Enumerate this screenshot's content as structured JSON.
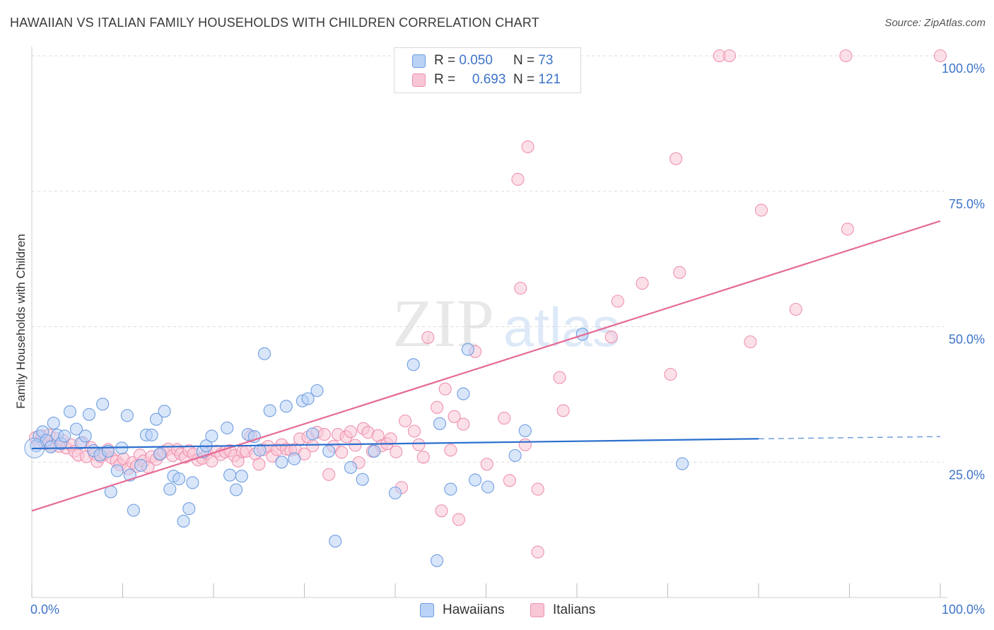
{
  "title": "HAWAIIAN VS ITALIAN FAMILY HOUSEHOLDS WITH CHILDREN CORRELATION CHART",
  "source": "Source: ZipAtlas.com",
  "watermark": {
    "zip": "ZIP",
    "atlas": "atlas"
  },
  "legend": {
    "rows": [
      {
        "r_label": "R =",
        "r_value": "0.050",
        "n_label": "N =",
        "n_value": "73"
      },
      {
        "r_label": "R =",
        "r_value": "0.693",
        "n_label": "N =",
        "n_value": "121"
      }
    ]
  },
  "bottom_legend": {
    "hawaiians": "Hawaiians",
    "italians": "Italians"
  },
  "colors": {
    "hawaiian_fill": "#b9d2f5",
    "hawaiian_stroke": "#6f9ee0",
    "hawaiian_line": "#2b6fce",
    "italian_fill": "#f9c6d6",
    "italian_stroke": "#ee92b0",
    "italian_line": "#e46a95",
    "tick_label": "#3d74c8",
    "grid": "#dddddd"
  },
  "chart_data": {
    "type": "scatter",
    "title": "HAWAIIAN VS ITALIAN FAMILY HOUSEHOLDS WITH CHILDREN CORRELATION CHART",
    "xlabel": "",
    "ylabel": "Family Households with Children",
    "xlim": [
      0,
      100
    ],
    "ylim": [
      0,
      100
    ],
    "x_tick_labels": [
      "0.0%",
      "100.0%"
    ],
    "y_tick_labels": [
      "25.0%",
      "50.0%",
      "75.0%",
      "100.0%"
    ],
    "y_ticks": [
      25,
      50,
      75,
      100
    ],
    "grid": true,
    "series": [
      {
        "name": "Hawaiians",
        "R": 0.05,
        "N": 73,
        "trend": {
          "x": [
            0,
            80
          ],
          "y": [
            27.5,
            29.3
          ],
          "dashed_to": [
            100,
            29.7
          ]
        },
        "points": [
          [
            0.5,
            28.0
          ],
          [
            0.8,
            29.8
          ],
          [
            1.2,
            30.6
          ],
          [
            1.6,
            29.0
          ],
          [
            2.1,
            27.8
          ],
          [
            2.4,
            32.2
          ],
          [
            2.8,
            30.0
          ],
          [
            3.2,
            28.4
          ],
          [
            3.6,
            29.8
          ],
          [
            4.2,
            34.3
          ],
          [
            4.9,
            31.1
          ],
          [
            5.4,
            28.5
          ],
          [
            5.9,
            29.8
          ],
          [
            6.3,
            33.8
          ],
          [
            6.8,
            27.1
          ],
          [
            7.5,
            26.3
          ],
          [
            7.8,
            35.7
          ],
          [
            8.4,
            27.0
          ],
          [
            8.7,
            19.5
          ],
          [
            9.4,
            23.4
          ],
          [
            9.9,
            27.6
          ],
          [
            10.5,
            33.6
          ],
          [
            10.8,
            22.6
          ],
          [
            11.2,
            16.1
          ],
          [
            12.0,
            24.4
          ],
          [
            12.6,
            30.0
          ],
          [
            13.2,
            30.0
          ],
          [
            13.7,
            32.9
          ],
          [
            14.1,
            26.5
          ],
          [
            14.6,
            34.4
          ],
          [
            15.2,
            20.0
          ],
          [
            15.6,
            22.4
          ],
          [
            16.2,
            21.9
          ],
          [
            16.7,
            14.1
          ],
          [
            17.3,
            16.4
          ],
          [
            17.7,
            21.2
          ],
          [
            18.8,
            26.9
          ],
          [
            19.2,
            28.0
          ],
          [
            19.8,
            29.8
          ],
          [
            21.5,
            31.3
          ],
          [
            21.8,
            22.6
          ],
          [
            22.5,
            19.9
          ],
          [
            23.1,
            22.4
          ],
          [
            23.8,
            30.1
          ],
          [
            24.5,
            29.7
          ],
          [
            25.1,
            27.2
          ],
          [
            25.6,
            45.0
          ],
          [
            26.2,
            34.5
          ],
          [
            27.5,
            25.0
          ],
          [
            28.0,
            35.3
          ],
          [
            28.9,
            25.6
          ],
          [
            29.8,
            36.3
          ],
          [
            30.4,
            36.7
          ],
          [
            30.9,
            30.2
          ],
          [
            31.4,
            38.2
          ],
          [
            32.7,
            27.0
          ],
          [
            33.4,
            10.4
          ],
          [
            35.1,
            24.0
          ],
          [
            36.4,
            21.8
          ],
          [
            37.7,
            27.0
          ],
          [
            40.0,
            19.3
          ],
          [
            42.0,
            43.0
          ],
          [
            44.6,
            6.8
          ],
          [
            44.9,
            32.1
          ],
          [
            46.1,
            20.0
          ],
          [
            47.5,
            37.6
          ],
          [
            48.0,
            45.8
          ],
          [
            48.8,
            21.7
          ],
          [
            50.2,
            20.4
          ],
          [
            53.2,
            26.2
          ],
          [
            54.3,
            30.8
          ],
          [
            60.6,
            48.6
          ],
          [
            71.6,
            24.7
          ]
        ]
      },
      {
        "name": "Italians",
        "R": 0.693,
        "N": 121,
        "trend": {
          "x": [
            0,
            100
          ],
          "y": [
            16.0,
            69.5
          ]
        },
        "points": [
          [
            0.4,
            29.5
          ],
          [
            0.8,
            28.5
          ],
          [
            1.1,
            29.8
          ],
          [
            1.5,
            28.4
          ],
          [
            1.9,
            30.0
          ],
          [
            2.2,
            28.1
          ],
          [
            2.6,
            29.4
          ],
          [
            3.0,
            27.9
          ],
          [
            3.4,
            29.0
          ],
          [
            3.8,
            27.6
          ],
          [
            4.3,
            28.2
          ],
          [
            4.7,
            27.0
          ],
          [
            5.1,
            26.3
          ],
          [
            5.6,
            28.6
          ],
          [
            6.0,
            26.0
          ],
          [
            6.5,
            27.7
          ],
          [
            6.9,
            26.5
          ],
          [
            7.2,
            25.1
          ],
          [
            7.6,
            26.0
          ],
          [
            8.0,
            26.5
          ],
          [
            8.4,
            27.3
          ],
          [
            8.8,
            25.8
          ],
          [
            9.3,
            25.2
          ],
          [
            9.7,
            24.5
          ],
          [
            10.1,
            25.6
          ],
          [
            10.6,
            23.8
          ],
          [
            11.1,
            24.9
          ],
          [
            11.5,
            24.2
          ],
          [
            11.9,
            26.3
          ],
          [
            12.3,
            25.2
          ],
          [
            12.8,
            24.1
          ],
          [
            13.2,
            26.0
          ],
          [
            13.7,
            25.5
          ],
          [
            14.1,
            26.4
          ],
          [
            14.5,
            26.9
          ],
          [
            15.0,
            27.4
          ],
          [
            15.5,
            26.2
          ],
          [
            16.0,
            27.3
          ],
          [
            16.4,
            26.5
          ],
          [
            16.9,
            25.9
          ],
          [
            17.3,
            27.1
          ],
          [
            17.8,
            26.5
          ],
          [
            18.3,
            25.4
          ],
          [
            18.8,
            25.7
          ],
          [
            19.3,
            26.6
          ],
          [
            19.8,
            25.2
          ],
          [
            20.3,
            27.0
          ],
          [
            20.8,
            26.4
          ],
          [
            21.3,
            26.9
          ],
          [
            21.8,
            27.1
          ],
          [
            22.3,
            26.2
          ],
          [
            22.7,
            25.2
          ],
          [
            23.2,
            26.9
          ],
          [
            23.6,
            27.0
          ],
          [
            24.1,
            29.8
          ],
          [
            24.6,
            26.5
          ],
          [
            25.0,
            24.6
          ],
          [
            25.5,
            27.3
          ],
          [
            26.0,
            27.9
          ],
          [
            26.5,
            26.1
          ],
          [
            27.0,
            27.3
          ],
          [
            27.5,
            28.2
          ],
          [
            28.0,
            27.4
          ],
          [
            28.5,
            27.2
          ],
          [
            29.0,
            27.4
          ],
          [
            29.5,
            29.3
          ],
          [
            30.0,
            26.5
          ],
          [
            30.4,
            29.6
          ],
          [
            30.9,
            28.0
          ],
          [
            31.4,
            30.5
          ],
          [
            32.2,
            30.1
          ],
          [
            32.7,
            22.7
          ],
          [
            33.2,
            27.9
          ],
          [
            33.7,
            30.1
          ],
          [
            34.1,
            26.8
          ],
          [
            34.6,
            29.7
          ],
          [
            35.1,
            30.6
          ],
          [
            35.6,
            28.1
          ],
          [
            36.0,
            24.9
          ],
          [
            36.5,
            31.2
          ],
          [
            37.0,
            30.5
          ],
          [
            37.5,
            27.0
          ],
          [
            38.1,
            29.9
          ],
          [
            38.5,
            28.0
          ],
          [
            39.1,
            28.4
          ],
          [
            39.5,
            29.3
          ],
          [
            40.1,
            26.9
          ],
          [
            40.7,
            20.3
          ],
          [
            41.1,
            32.6
          ],
          [
            42.1,
            30.7
          ],
          [
            42.6,
            28.2
          ],
          [
            43.1,
            25.9
          ],
          [
            43.6,
            48.0
          ],
          [
            44.6,
            35.1
          ],
          [
            45.1,
            16.0
          ],
          [
            45.5,
            38.5
          ],
          [
            46.1,
            27.2
          ],
          [
            46.5,
            33.4
          ],
          [
            47.0,
            14.4
          ],
          [
            47.5,
            32.0
          ],
          [
            48.8,
            45.4
          ],
          [
            50.1,
            24.6
          ],
          [
            52.0,
            33.1
          ],
          [
            52.6,
            21.6
          ],
          [
            53.5,
            77.2
          ],
          [
            53.8,
            57.1
          ],
          [
            54.3,
            28.2
          ],
          [
            54.6,
            83.2
          ],
          [
            55.7,
            8.4
          ],
          [
            55.7,
            20.0
          ],
          [
            58.1,
            40.6
          ],
          [
            58.5,
            34.5
          ],
          [
            63.8,
            48.1
          ],
          [
            64.5,
            54.7
          ],
          [
            67.2,
            58.0
          ],
          [
            70.3,
            41.2
          ],
          [
            70.9,
            81.0
          ],
          [
            71.3,
            60.0
          ],
          [
            75.7,
            100.0
          ],
          [
            76.8,
            100.0
          ],
          [
            79.1,
            47.2
          ],
          [
            80.3,
            71.5
          ],
          [
            84.1,
            53.2
          ],
          [
            89.6,
            100.0
          ],
          [
            89.8,
            68.0
          ],
          [
            100.0,
            100.0
          ]
        ]
      }
    ]
  }
}
